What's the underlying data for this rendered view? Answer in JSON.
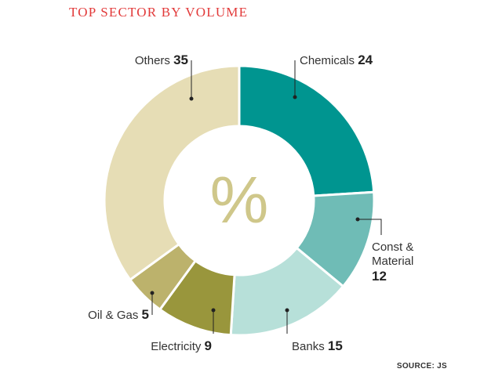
{
  "chart_data": {
    "type": "pie",
    "title": "TOP SECTOR BY VOLUME",
    "unit_symbol": "%",
    "categories": [
      "Chemicals",
      "Const & Material",
      "Banks",
      "Electricity",
      "Oil & Gas",
      "Others"
    ],
    "values": [
      24,
      12,
      15,
      9,
      5,
      35
    ],
    "colors": [
      "#009590",
      "#6fbcb6",
      "#b7e0d9",
      "#99963c",
      "#bcb26c",
      "#e6ddb5"
    ],
    "source": "SOURCE: JS"
  }
}
